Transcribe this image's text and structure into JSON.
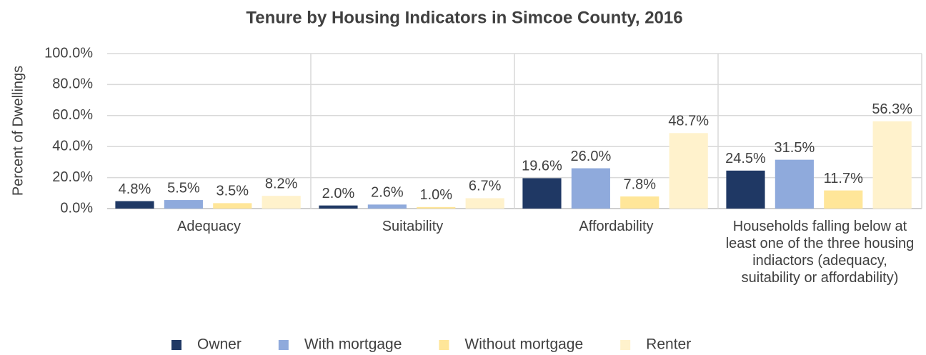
{
  "chart_data": {
    "type": "bar",
    "title": "Tenure by Housing Indicators in Simcoe County, 2016",
    "y_label": "Percent of Dwellings",
    "categories": [
      "Adequacy",
      "Suitability",
      "Affordability",
      "Households falling below at least one of the three housing indiactors (adequacy, suitability or affordability)"
    ],
    "series": [
      {
        "name": "Owner",
        "color": "#1f3864",
        "values": [
          4.8,
          2.0,
          19.6,
          24.5
        ],
        "value_labels": [
          "4.8%",
          "2.0%",
          "19.6%",
          "24.5%"
        ]
      },
      {
        "name": "With mortgage",
        "color": "#8faadc",
        "values": [
          5.5,
          2.6,
          26.0,
          31.5
        ],
        "value_labels": [
          "5.5%",
          "2.6%",
          "26.0%",
          "31.5%"
        ]
      },
      {
        "name": "Without mortgage",
        "color": "#ffe699",
        "values": [
          3.5,
          1.0,
          7.8,
          11.7
        ],
        "value_labels": [
          "3.5%",
          "1.0%",
          "7.8%",
          "11.7%"
        ]
      },
      {
        "name": "Renter",
        "color": "#fff2cc",
        "values": [
          8.2,
          6.7,
          48.7,
          56.3
        ],
        "value_labels": [
          "8.2%",
          "6.7%",
          "48.7%",
          "56.3%"
        ]
      }
    ],
    "ylim": [
      0,
      100
    ],
    "yticks": [
      {
        "value": 0,
        "label": "0.0%"
      },
      {
        "value": 20,
        "label": "20.0%"
      },
      {
        "value": 40,
        "label": "40.0%"
      },
      {
        "value": 60,
        "label": "60.0%"
      },
      {
        "value": 80,
        "label": "80.0%"
      },
      {
        "value": 100,
        "label": "100.0%"
      }
    ],
    "grid": true,
    "legend": "bottom"
  }
}
